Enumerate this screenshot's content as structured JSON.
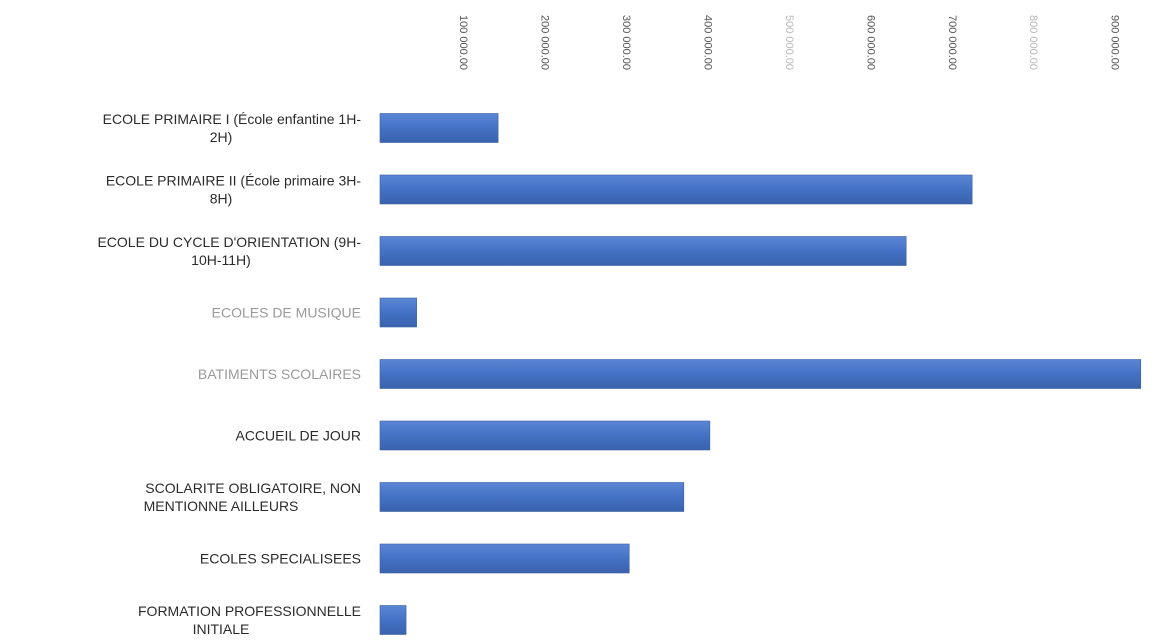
{
  "chart_data": {
    "type": "bar",
    "orientation": "horizontal",
    "title": "",
    "xlabel": "",
    "ylabel": "",
    "categories": [
      [
        "ECOLE PRIMAIRE I (École enfantine 1H-",
        "2H)"
      ],
      [
        "ECOLE PRIMAIRE II (École primaire 3H-",
        "8H)"
      ],
      [
        "ECOLE DU CYCLE D'ORIENTATION (9H-",
        "10H-11H)"
      ],
      [
        "ECOLES DE MUSIQUE"
      ],
      [
        "BATIMENTS SCOLAIRES"
      ],
      [
        "ACCUEIL DE JOUR"
      ],
      [
        "SCOLARITE OBLIGATOIRE, NON",
        "MENTIONNE AILLEURS"
      ],
      [
        "ECOLES SPECIALISEES"
      ],
      [
        "FORMATION PROFESSIONNELLE",
        "INITIALE"
      ]
    ],
    "faded_categories": [
      3,
      4
    ],
    "values": [
      145000,
      727000,
      646000,
      45000,
      934000,
      405000,
      373000,
      306000,
      32000
    ],
    "xlim": [
      0,
      900000
    ],
    "xticks": [
      {
        "value": 100000,
        "label": "100 000.00"
      },
      {
        "value": 200000,
        "label": "200 000.00"
      },
      {
        "value": 300000,
        "label": "300 000.00"
      },
      {
        "value": 400000,
        "label": "400 000.00"
      },
      {
        "value": 500000,
        "label": "500 000.00"
      },
      {
        "value": 600000,
        "label": "600 000.00"
      },
      {
        "value": 700000,
        "label": "700 000.00"
      },
      {
        "value": 800000,
        "label": "800 000.00"
      },
      {
        "value": 900000,
        "label": "900 000.00"
      }
    ],
    "faded_ticks": [
      4,
      7
    ],
    "axis_position": "top",
    "grid": false,
    "legend": "none",
    "bar_color": "#4472c4"
  }
}
